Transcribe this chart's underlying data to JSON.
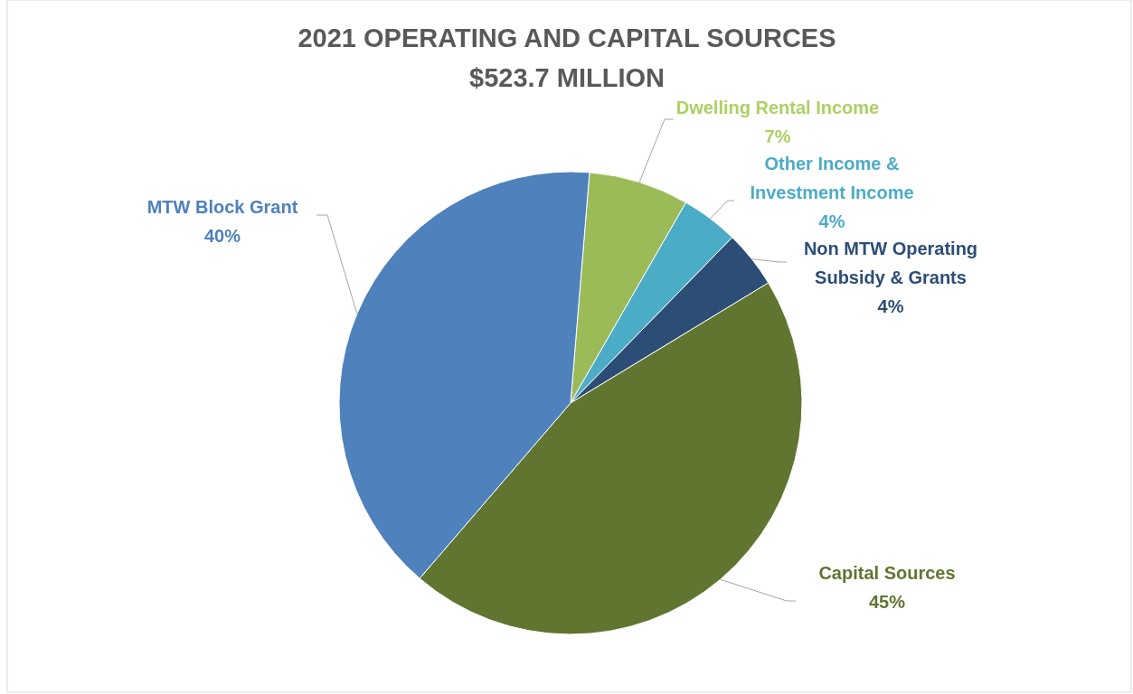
{
  "chart_data": {
    "type": "pie",
    "title": "2021 OPERATING AND CAPITAL SOURCES",
    "subtitle": "$523.7 MILLION",
    "categories": [
      "Dwelling Rental Income",
      "Other Income & Investment Income",
      "Non MTW Operating Subsidy & Grants",
      "Capital Sources",
      "MTW Block Grant"
    ],
    "values": [
      7,
      4,
      4,
      45,
      40
    ],
    "colors": [
      "#9bbb59",
      "#4bacc6",
      "#2c4d75",
      "#5f7530",
      "#4f81bd"
    ],
    "value_labels": [
      "7%",
      "4%",
      "4%",
      "45%",
      "40%"
    ]
  }
}
